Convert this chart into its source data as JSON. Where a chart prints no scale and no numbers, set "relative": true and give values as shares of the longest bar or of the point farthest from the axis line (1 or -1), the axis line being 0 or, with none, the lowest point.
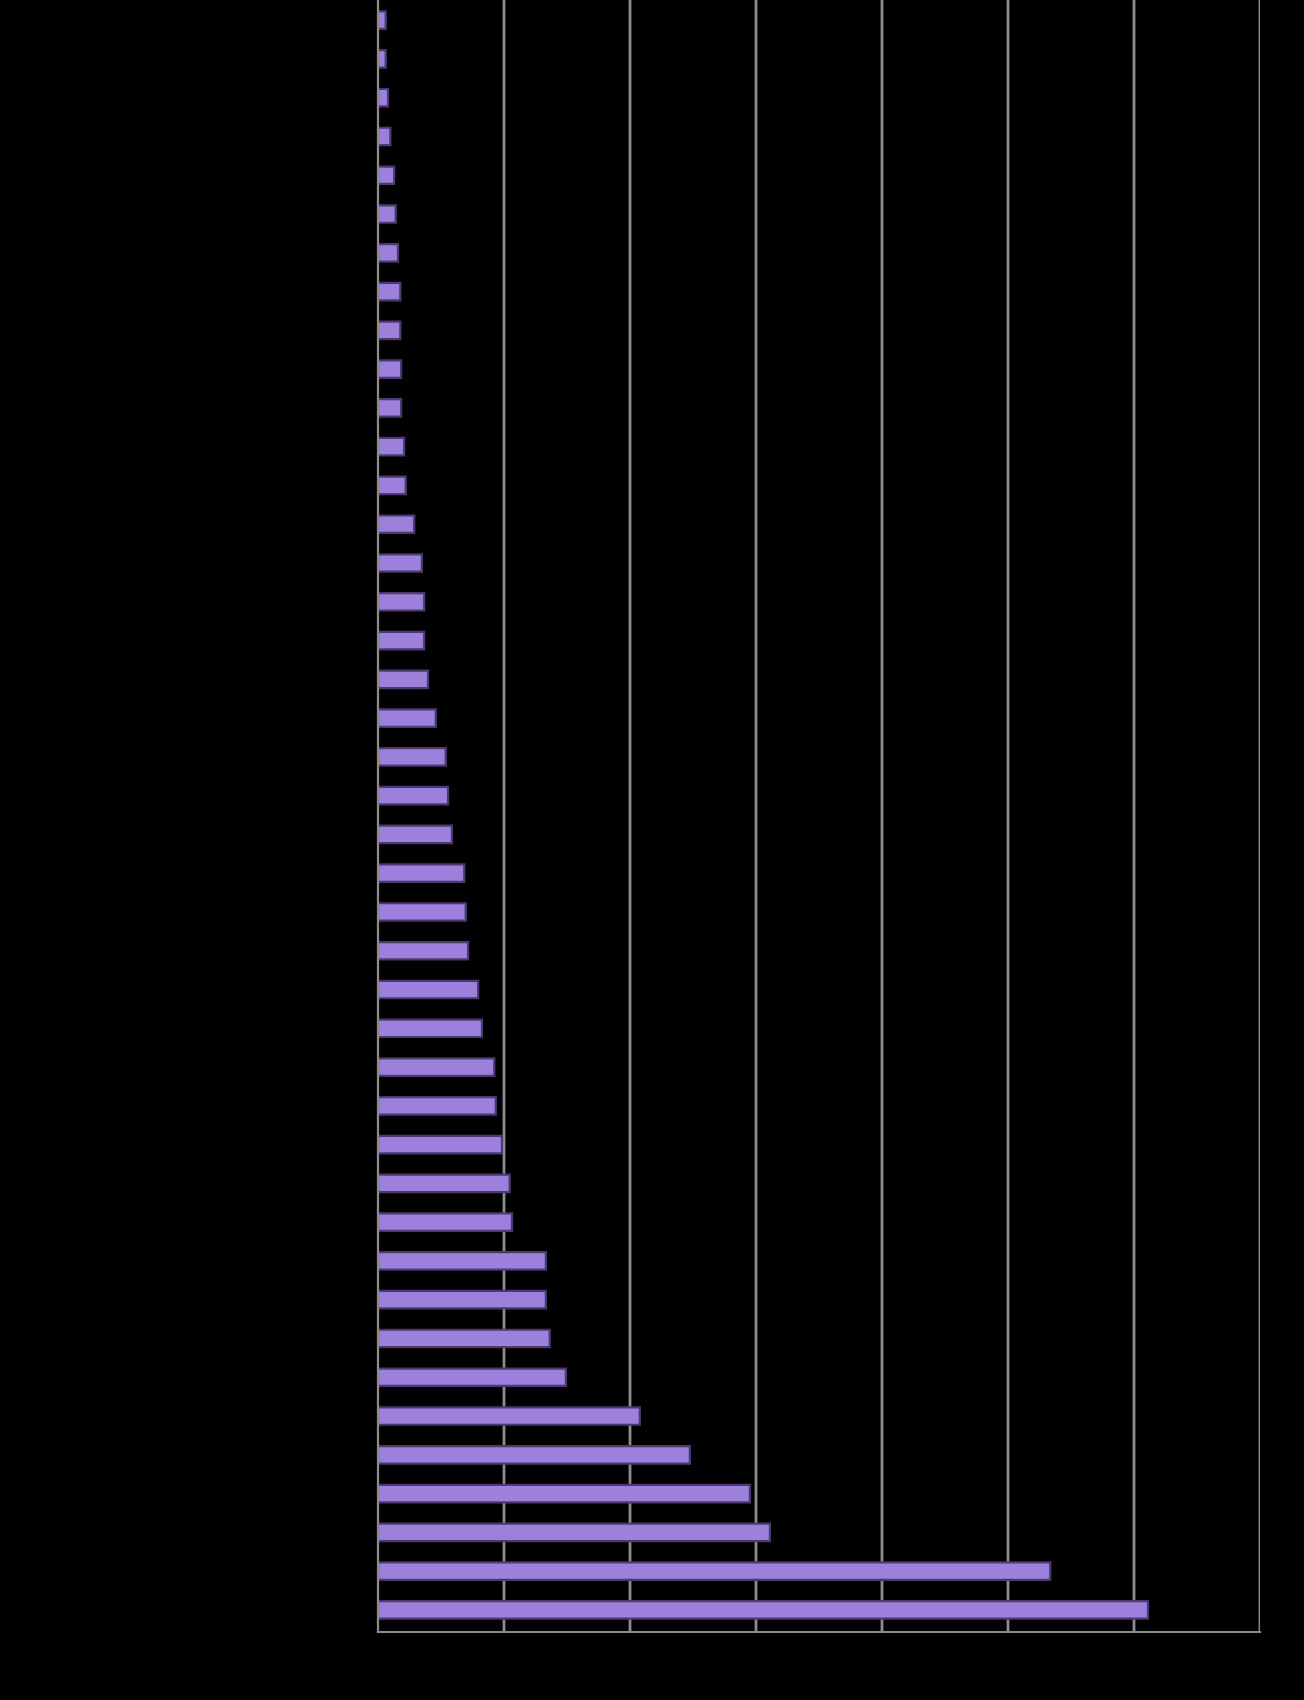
{
  "chart_data": {
    "type": "bar",
    "orientation": "horizontal",
    "relative": true,
    "grid": "x",
    "categories": [
      null,
      null,
      null,
      null,
      null,
      null,
      null,
      null,
      null,
      null,
      null,
      null,
      null,
      null,
      null,
      null,
      null,
      null,
      null,
      null,
      null,
      null,
      null,
      null,
      null,
      null,
      null,
      null,
      null,
      null,
      null,
      null,
      null,
      null,
      null,
      null,
      null,
      null,
      null,
      null,
      null,
      null
    ],
    "color": "#9d80dc",
    "values": [
      0.01,
      0.01,
      0.013,
      0.016,
      0.021,
      0.023,
      0.026,
      0.029,
      0.029,
      0.03,
      0.03,
      0.034,
      0.036,
      0.047,
      0.057,
      0.06,
      0.06,
      0.065,
      0.075,
      0.088,
      0.091,
      0.096,
      0.112,
      0.114,
      0.117,
      0.13,
      0.135,
      0.151,
      0.153,
      0.161,
      0.171,
      0.174,
      0.218,
      0.218,
      0.223,
      0.244,
      0.34,
      0.405,
      0.483,
      0.509,
      0.873,
      1
    ]
  }
}
